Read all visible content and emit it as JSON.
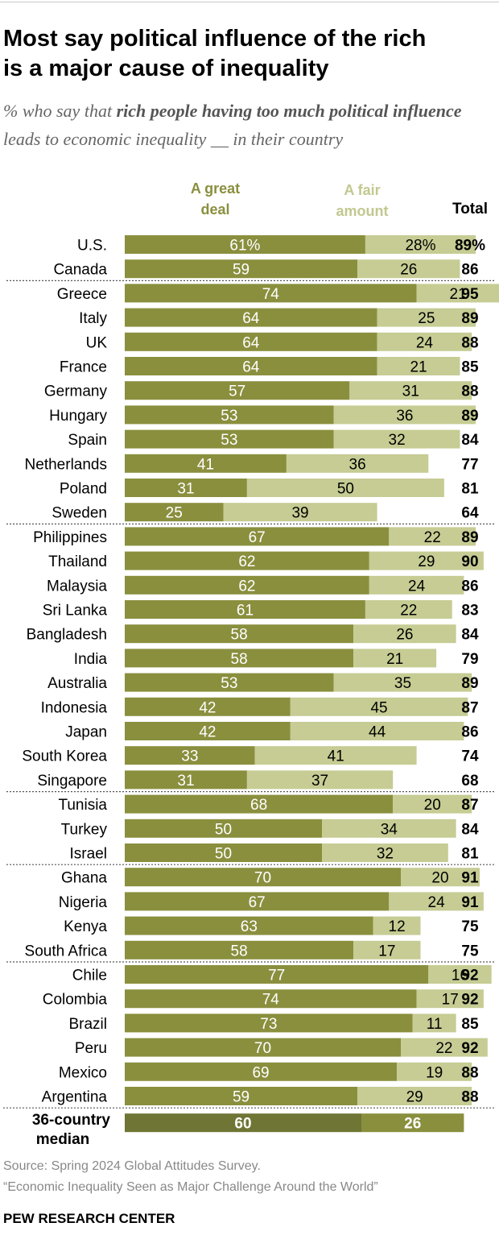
{
  "title_line1": "Most say political influence of the rich",
  "title_line2": "is a major cause of inequality",
  "subtitle": {
    "prefix": "% who say that ",
    "bold": "rich people having too much political influence",
    "suffix": " leads to economic inequality __ in their country"
  },
  "legend": {
    "great_deal_line1": "A great",
    "great_deal_line2": "deal",
    "fair_amount_line1": "A fair",
    "fair_amount_line2": "amount",
    "total": "Total"
  },
  "colors": {
    "great_deal": "#8a8f3e",
    "fair_amount": "#c6cc93",
    "median_great": "#6f7534",
    "median_fair": "#8a8f3e",
    "separator": "#555555"
  },
  "chart_data": {
    "type": "bar",
    "stacked": true,
    "orientation": "horizontal",
    "title": "Most say political influence of the rich is a major cause of inequality",
    "series_names": [
      "A great deal",
      "A fair amount"
    ],
    "xlim": [
      0,
      100
    ],
    "rows": [
      {
        "country": "U.S.",
        "great": 61,
        "fair": 28,
        "total": 89,
        "great_label": "61%",
        "fair_label": "28%",
        "total_label": "89%",
        "group": 1
      },
      {
        "country": "Canada",
        "great": 59,
        "fair": 26,
        "total": 86,
        "group": 1
      },
      {
        "country": "Greece",
        "great": 74,
        "fair": 21,
        "total": 95,
        "group": 2
      },
      {
        "country": "Italy",
        "great": 64,
        "fair": 25,
        "total": 89,
        "group": 2
      },
      {
        "country": "UK",
        "great": 64,
        "fair": 24,
        "total": 88,
        "group": 2
      },
      {
        "country": "France",
        "great": 64,
        "fair": 21,
        "total": 85,
        "group": 2
      },
      {
        "country": "Germany",
        "great": 57,
        "fair": 31,
        "total": 88,
        "group": 2
      },
      {
        "country": "Hungary",
        "great": 53,
        "fair": 36,
        "total": 89,
        "group": 2
      },
      {
        "country": "Spain",
        "great": 53,
        "fair": 32,
        "total": 84,
        "group": 2
      },
      {
        "country": "Netherlands",
        "great": 41,
        "fair": 36,
        "total": 77,
        "group": 2
      },
      {
        "country": "Poland",
        "great": 31,
        "fair": 50,
        "total": 81,
        "group": 2
      },
      {
        "country": "Sweden",
        "great": 25,
        "fair": 39,
        "total": 64,
        "group": 2
      },
      {
        "country": "Philippines",
        "great": 67,
        "fair": 22,
        "total": 89,
        "group": 3
      },
      {
        "country": "Thailand",
        "great": 62,
        "fair": 29,
        "total": 90,
        "group": 3
      },
      {
        "country": "Malaysia",
        "great": 62,
        "fair": 24,
        "total": 86,
        "group": 3
      },
      {
        "country": "Sri Lanka",
        "great": 61,
        "fair": 22,
        "total": 83,
        "group": 3
      },
      {
        "country": "Bangladesh",
        "great": 58,
        "fair": 26,
        "total": 84,
        "group": 3
      },
      {
        "country": "India",
        "great": 58,
        "fair": 21,
        "total": 79,
        "group": 3
      },
      {
        "country": "Australia",
        "great": 53,
        "fair": 35,
        "total": 89,
        "group": 3
      },
      {
        "country": "Indonesia",
        "great": 42,
        "fair": 45,
        "total": 87,
        "group": 3
      },
      {
        "country": "Japan",
        "great": 42,
        "fair": 44,
        "total": 86,
        "group": 3
      },
      {
        "country": "South Korea",
        "great": 33,
        "fair": 41,
        "total": 74,
        "group": 3
      },
      {
        "country": "Singapore",
        "great": 31,
        "fair": 37,
        "total": 68,
        "group": 3
      },
      {
        "country": "Tunisia",
        "great": 68,
        "fair": 20,
        "total": 87,
        "group": 4
      },
      {
        "country": "Turkey",
        "great": 50,
        "fair": 34,
        "total": 84,
        "group": 4
      },
      {
        "country": "Israel",
        "great": 50,
        "fair": 32,
        "total": 81,
        "group": 4
      },
      {
        "country": "Ghana",
        "great": 70,
        "fair": 20,
        "total": 91,
        "group": 5
      },
      {
        "country": "Nigeria",
        "great": 67,
        "fair": 24,
        "total": 91,
        "group": 5
      },
      {
        "country": "Kenya",
        "great": 63,
        "fair": 12,
        "total": 75,
        "group": 5
      },
      {
        "country": "South Africa",
        "great": 58,
        "fair": 17,
        "total": 75,
        "group": 5
      },
      {
        "country": "Chile",
        "great": 77,
        "fair": 16,
        "total": 92,
        "group": 6
      },
      {
        "country": "Colombia",
        "great": 74,
        "fair": 17,
        "total": 92,
        "group": 6
      },
      {
        "country": "Brazil",
        "great": 73,
        "fair": 11,
        "total": 85,
        "group": 6
      },
      {
        "country": "Peru",
        "great": 70,
        "fair": 22,
        "total": 92,
        "group": 6
      },
      {
        "country": "Mexico",
        "great": 69,
        "fair": 19,
        "total": 88,
        "group": 6
      },
      {
        "country": "Argentina",
        "great": 59,
        "fair": 29,
        "total": 88,
        "group": 6
      }
    ],
    "median": {
      "label_line1": "36-country",
      "label_line2": "median",
      "great": 60,
      "fair": 26
    }
  },
  "source_line1": "Source: Spring 2024 Global Attitudes Survey.",
  "source_line2": "“Economic Inequality Seen as Major Challenge Around the World”",
  "brand": "PEW RESEARCH CENTER"
}
